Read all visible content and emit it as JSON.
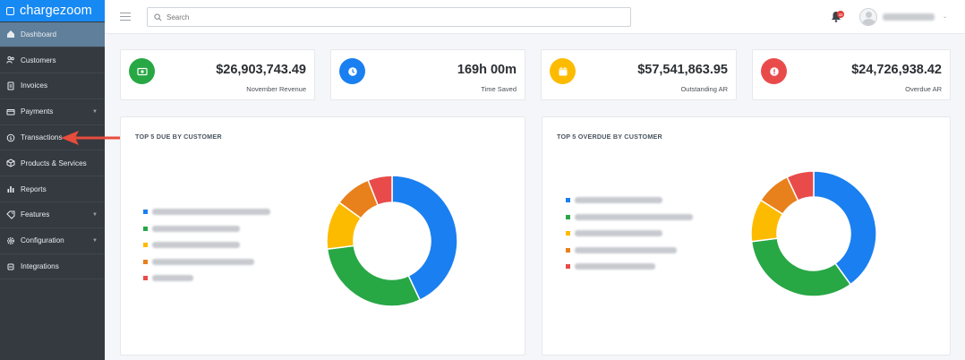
{
  "brand": {
    "name": "chargezoom"
  },
  "sidebar": {
    "items": [
      {
        "label": "Dashboard",
        "icon": "home-icon",
        "active": true,
        "has_caret": false
      },
      {
        "label": "Customers",
        "icon": "users-icon",
        "active": false,
        "has_caret": false
      },
      {
        "label": "Invoices",
        "icon": "invoice-icon",
        "active": false,
        "has_caret": false
      },
      {
        "label": "Payments",
        "icon": "payment-card-icon",
        "active": false,
        "has_caret": true
      },
      {
        "label": "Transactions",
        "icon": "dollar-circle-icon",
        "active": false,
        "has_caret": false
      },
      {
        "label": "Products & Services",
        "icon": "box-icon",
        "active": false,
        "has_caret": false
      },
      {
        "label": "Reports",
        "icon": "bar-chart-icon",
        "active": false,
        "has_caret": false
      },
      {
        "label": "Features",
        "icon": "tag-icon",
        "active": false,
        "has_caret": true
      },
      {
        "label": "Configuration",
        "icon": "gear-icon",
        "active": false,
        "has_caret": true
      },
      {
        "label": "Integrations",
        "icon": "plug-icon",
        "active": false,
        "has_caret": false
      }
    ]
  },
  "topbar": {
    "search_placeholder": "Search",
    "notification_count": "32"
  },
  "stats": [
    {
      "value": "$26,903,743.49",
      "label": "November Revenue",
      "color": "#28a745",
      "icon": "cash-icon"
    },
    {
      "value": "169h 00m",
      "label": "Time Saved",
      "color": "#1a7ff0",
      "icon": "clock-icon"
    },
    {
      "value": "$57,541,863.95",
      "label": "Outstanding AR",
      "color": "#fdbb00",
      "icon": "calendar-icon"
    },
    {
      "value": "$24,726,938.42",
      "label": "Overdue AR",
      "color": "#e94b4b",
      "icon": "alert-icon"
    }
  ],
  "panels": [
    {
      "title": "TOP 5 DUE BY CUSTOMER"
    },
    {
      "title": "TOP 5 OVERDUE BY CUSTOMER"
    }
  ],
  "colors": {
    "blue": "#1a7ff0",
    "green": "#28a745",
    "yellow": "#fdbb00",
    "orange": "#e8801c",
    "red": "#e94b4b"
  },
  "chart_data": [
    {
      "type": "pie",
      "title": "TOP 5 DUE BY CUSTOMER",
      "legend_placement": "left",
      "series": [
        {
          "value": 43,
          "color": "#1a7ff0"
        },
        {
          "value": 30,
          "color": "#28a745"
        },
        {
          "value": 12,
          "color": "#fdbb00"
        },
        {
          "value": 9,
          "color": "#e8801c"
        },
        {
          "value": 6,
          "color": "#e94b4b"
        }
      ]
    },
    {
      "type": "pie",
      "title": "TOP 5 OVERDUE BY CUSTOMER",
      "legend_placement": "left",
      "series": [
        {
          "value": 40,
          "color": "#1a7ff0"
        },
        {
          "value": 33,
          "color": "#28a745"
        },
        {
          "value": 11,
          "color": "#fdbb00"
        },
        {
          "value": 9,
          "color": "#e8801c"
        },
        {
          "value": 7,
          "color": "#e94b4b"
        }
      ]
    }
  ]
}
